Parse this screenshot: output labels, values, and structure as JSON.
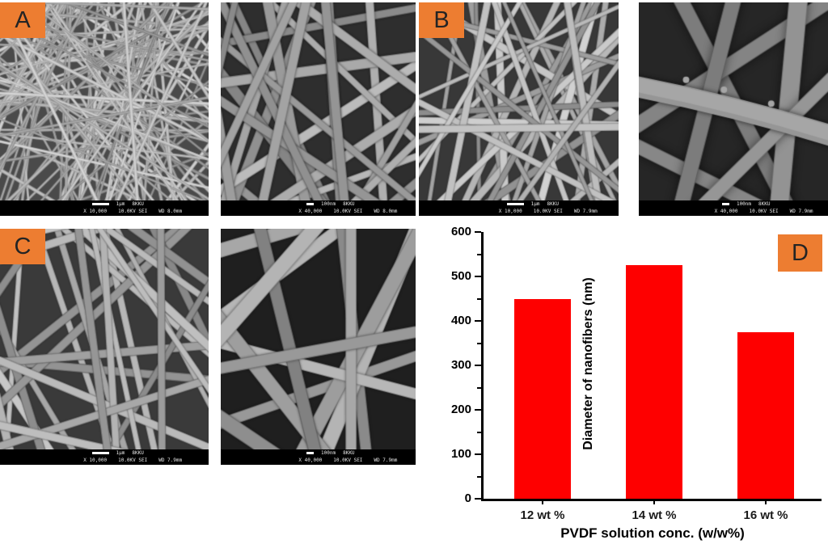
{
  "figure": {
    "panels": [
      {
        "label": "A",
        "scale": "1μm",
        "station": "8KKU",
        "magnification": "X 10,000",
        "voltage": "10.0KV SEI",
        "working_distance": "WD 8.0mm"
      },
      {
        "label": "",
        "scale": "100nm",
        "station": "8KKU",
        "magnification": "X 40,000",
        "voltage": "10.0KV SEI",
        "working_distance": "WD 8.0mm"
      },
      {
        "label": "B",
        "scale": "1μm",
        "station": "8KKU",
        "magnification": "X 10,000",
        "voltage": "10.0KV SEI",
        "working_distance": "WD 7.9mm"
      },
      {
        "label": "",
        "scale": "100nm",
        "station": "8KKU",
        "magnification": "X 40,000",
        "voltage": "10.0KV SEI",
        "working_distance": "WD 7.9mm"
      },
      {
        "label": "C",
        "scale": "1μm",
        "station": "8KKU",
        "magnification": "X 10,000",
        "voltage": "10.0KV SEI",
        "working_distance": "WD 7.9mm"
      },
      {
        "label": "",
        "scale": "100nm",
        "station": "8KKU",
        "magnification": "X 40,000",
        "voltage": "10.0KV SEI",
        "working_distance": "WD 7.9mm"
      }
    ],
    "chart_panel_label": "D"
  },
  "chart_data": {
    "type": "bar",
    "categories": [
      "12 wt %",
      "14 wt %",
      "16 wt %"
    ],
    "values": [
      450,
      525,
      375
    ],
    "title": "",
    "xlabel": "PVDF solution conc. (w/w%)",
    "ylabel": "Diameter of nanofibers (nm)",
    "ylim": [
      0,
      600
    ],
    "ytick_step": 100,
    "minor_tick_step": 50,
    "bar_color": "#FE0000",
    "grid": false,
    "legend": null
  },
  "colors": {
    "label_box": "#ED7D31",
    "bar": "#FE0000"
  }
}
